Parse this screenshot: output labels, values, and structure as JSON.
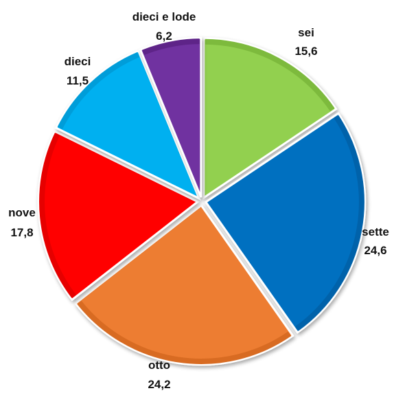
{
  "chart_data": {
    "type": "pie",
    "title": "",
    "slices": [
      {
        "label": "sei",
        "value_text": "15,6",
        "value": 15.6,
        "color": "#92D050",
        "border": "#7DBA3D"
      },
      {
        "label": "sette",
        "value_text": "24,6",
        "value": 24.6,
        "color": "#0070C0",
        "border": "#0062AA"
      },
      {
        "label": "otto",
        "value_text": "24,2",
        "value": 24.2,
        "color": "#ED7D31",
        "border": "#D86B22"
      },
      {
        "label": "nove",
        "value_text": "17,8",
        "value": 17.8,
        "color": "#FF0000",
        "border": "#E60000"
      },
      {
        "label": "dieci",
        "value_text": "11,5",
        "value": 11.5,
        "color": "#00B0F0",
        "border": "#009DD9"
      },
      {
        "label": "dieci e lode",
        "value_text": "6,2",
        "value": 6.2,
        "color": "#7030A0",
        "border": "#5E2488"
      }
    ],
    "legend": "none"
  }
}
